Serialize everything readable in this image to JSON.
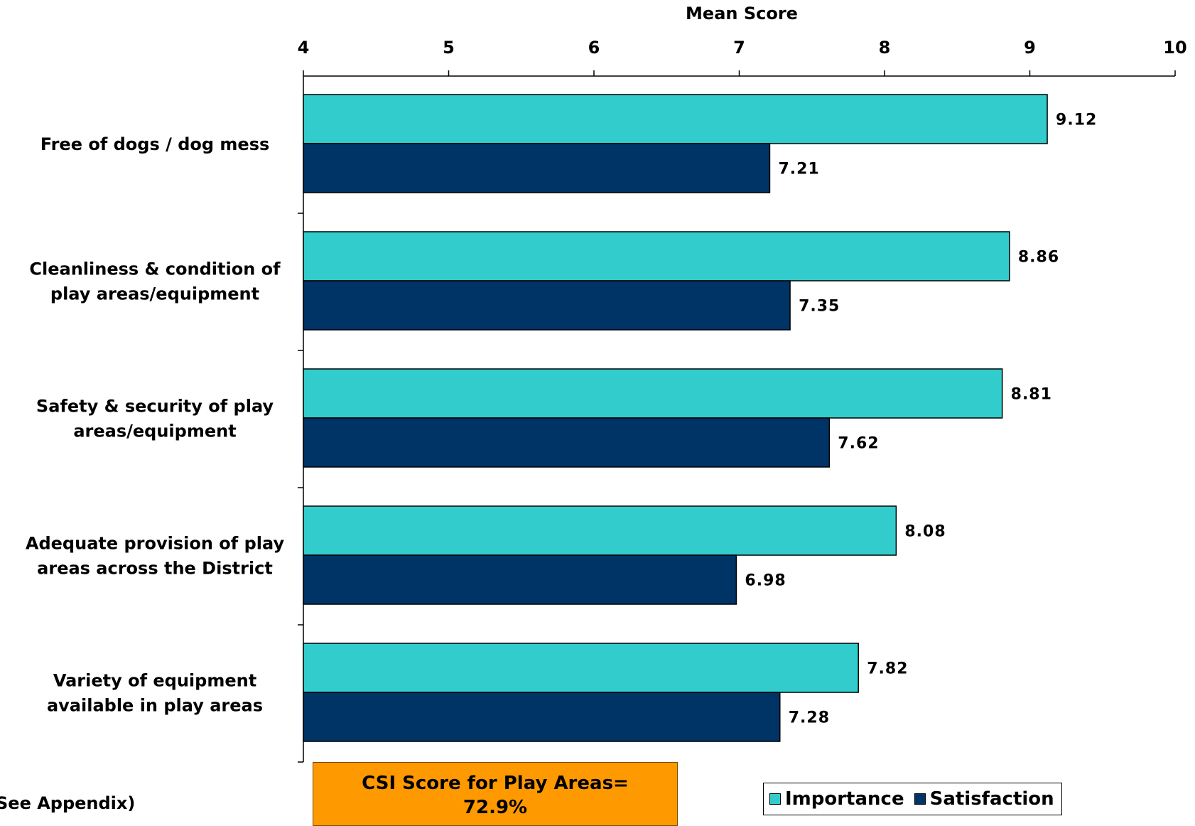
{
  "chart_data": {
    "type": "bar",
    "orientation": "horizontal",
    "xlabel": "Mean Score",
    "xlim": [
      4,
      10
    ],
    "ticks": [
      "4",
      "5",
      "6",
      "7",
      "8",
      "9",
      "10"
    ],
    "categories": [
      [
        "Free of dogs / dog mess"
      ],
      [
        "Cleanliness & condition of",
        "play areas/equipment"
      ],
      [
        "Safety & security of play",
        "areas/equipment"
      ],
      [
        "Adequate provision of play",
        "areas across the District"
      ],
      [
        "Variety of equipment",
        "available in play areas"
      ]
    ],
    "series": [
      {
        "name": "Importance",
        "color": "#33cccc",
        "values": [
          9.12,
          8.86,
          8.81,
          8.08,
          7.82
        ],
        "labels": [
          "9.12",
          "8.86",
          "8.81",
          "8.08",
          "7.82"
        ]
      },
      {
        "name": "Satisfaction",
        "color": "#003366",
        "values": [
          7.21,
          7.35,
          7.62,
          6.98,
          7.28
        ],
        "labels": [
          "7.21",
          "7.35",
          "7.62",
          "6.98",
          "7.28"
        ]
      }
    ],
    "legend_position": "bottom-right",
    "grid": false
  },
  "annotation": {
    "line1": "CSI Score for Play Areas=",
    "line2": "72.9%"
  },
  "footnote": "See Appendix)"
}
